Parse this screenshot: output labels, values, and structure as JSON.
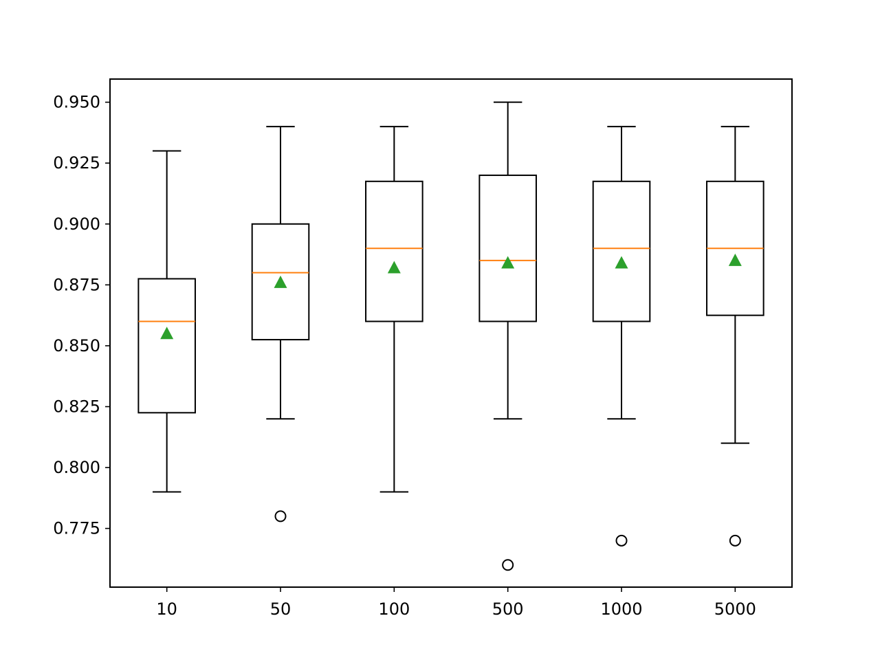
{
  "chart_data": {
    "type": "box",
    "title": "",
    "xlabel": "",
    "ylabel": "",
    "ylim": [
      0.7509,
      0.9595
    ],
    "yticks": [
      "0.775",
      "0.800",
      "0.825",
      "0.850",
      "0.875",
      "0.900",
      "0.925",
      "0.950"
    ],
    "categories": [
      "10",
      "50",
      "100",
      "500",
      "1000",
      "5000"
    ],
    "boxes": [
      {
        "category": "10",
        "whisker_low": 0.79,
        "q1": 0.8225,
        "median": 0.86,
        "q3": 0.8775,
        "whisker_high": 0.93,
        "mean": 0.855,
        "outliers": []
      },
      {
        "category": "50",
        "whisker_low": 0.82,
        "q1": 0.8525,
        "median": 0.88,
        "q3": 0.9,
        "whisker_high": 0.94,
        "mean": 0.876,
        "outliers": [
          0.78
        ]
      },
      {
        "category": "100",
        "whisker_low": 0.79,
        "q1": 0.86,
        "median": 0.89,
        "q3": 0.9175,
        "whisker_high": 0.94,
        "mean": 0.882,
        "outliers": []
      },
      {
        "category": "500",
        "whisker_low": 0.82,
        "q1": 0.86,
        "median": 0.885,
        "q3": 0.92,
        "whisker_high": 0.95,
        "mean": 0.884,
        "outliers": [
          0.76
        ]
      },
      {
        "category": "1000",
        "whisker_low": 0.82,
        "q1": 0.86,
        "median": 0.89,
        "q3": 0.9175,
        "whisker_high": 0.94,
        "mean": 0.884,
        "outliers": [
          0.77
        ]
      },
      {
        "category": "5000",
        "whisker_low": 0.81,
        "q1": 0.8625,
        "median": 0.89,
        "q3": 0.9175,
        "whisker_high": 0.94,
        "mean": 0.885,
        "outliers": [
          0.77
        ]
      }
    ],
    "colors": {
      "box": "#000000",
      "median": "#ff7f0e",
      "mean": "#2ca02c",
      "outlier": "#000000"
    },
    "grid": false,
    "legend": "none"
  }
}
